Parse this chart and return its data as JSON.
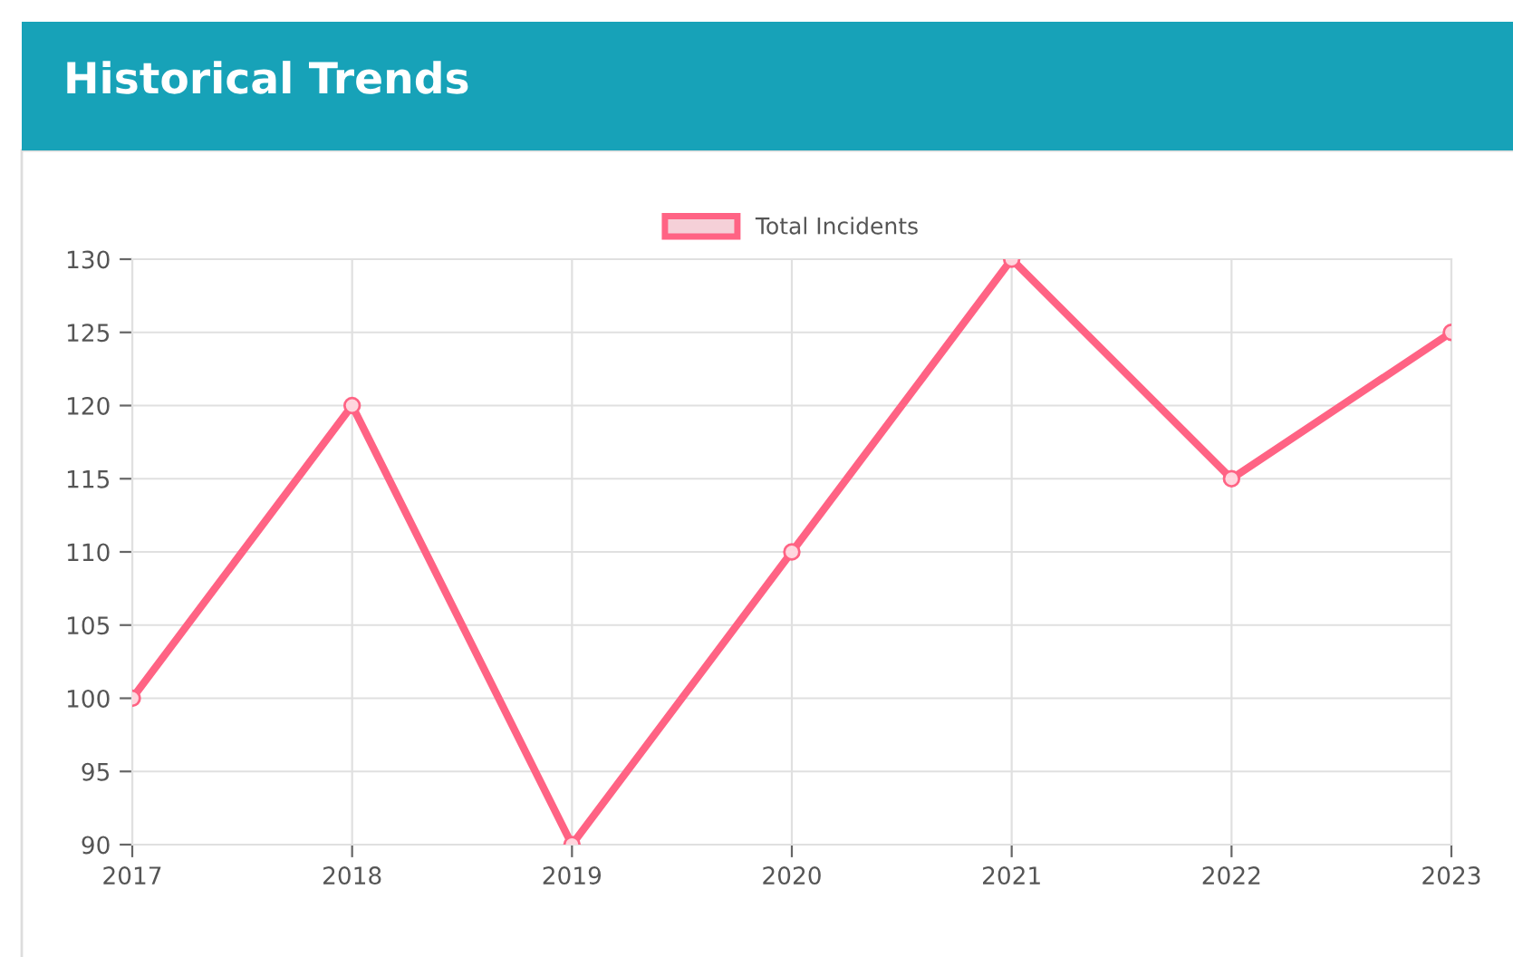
{
  "chart_data": {
    "type": "line",
    "title": "Historical Trends",
    "categories": [
      "2017",
      "2018",
      "2019",
      "2020",
      "2021",
      "2022",
      "2023"
    ],
    "series": [
      {
        "name": "Total Incidents",
        "color": "#ff6384",
        "values": [
          100,
          120,
          90,
          110,
          130,
          115,
          125
        ]
      }
    ],
    "ylim": [
      90,
      130
    ],
    "yticks": [
      90,
      95,
      100,
      105,
      110,
      115,
      120,
      125,
      130
    ],
    "grid": true,
    "legend": "top",
    "marker": "circle",
    "line_style": "solid"
  }
}
